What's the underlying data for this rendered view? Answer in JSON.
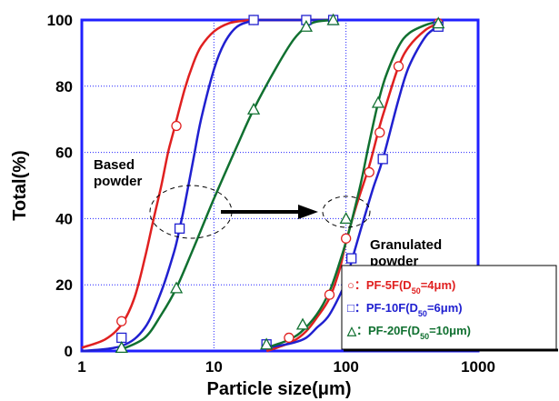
{
  "chart_data": {
    "type": "line",
    "title": "",
    "xlabel": "Particle size(μm)",
    "ylabel": "Total(%)",
    "xscale": "log",
    "xlim": [
      1,
      1000
    ],
    "ylim": [
      0,
      100
    ],
    "xticks": [
      "1",
      "10",
      "100",
      "1000"
    ],
    "yticks": [
      "0",
      "20",
      "40",
      "60",
      "80",
      "100"
    ],
    "grid": "dotted",
    "annotations": {
      "based_line1": "Based",
      "based_line2": "powder",
      "granulated_line1": "Granulated",
      "granulated_line2": "powder"
    },
    "legend": {
      "position": "bottom-right",
      "entries": [
        {
          "prefix": "○：PF-5F(D",
          "sub": "50",
          "suffix": "=4μm)",
          "color": "#e02020",
          "marker": "circle"
        },
        {
          "prefix": "□：PF-10F(D",
          "sub": "50",
          "suffix": "=6μm)",
          "color": "#2020d0",
          "marker": "square"
        },
        {
          "prefix": "△：PF-20F(D",
          "sub": "50",
          "suffix": "=10μm)",
          "color": "#107030",
          "marker": "triangle"
        }
      ]
    },
    "series": [
      {
        "group": "based",
        "color": "#e02020",
        "marker": "circle",
        "curve": [
          [
            1,
            1
          ],
          [
            1.5,
            3.5
          ],
          [
            2,
            8
          ],
          [
            2.5,
            16
          ],
          [
            3,
            28
          ],
          [
            3.5,
            40
          ],
          [
            4,
            50
          ],
          [
            4.5,
            60
          ],
          [
            5,
            67
          ],
          [
            6,
            79
          ],
          [
            7,
            87
          ],
          [
            8,
            92
          ],
          [
            10,
            96.5
          ],
          [
            13,
            99
          ],
          [
            17,
            99.8
          ],
          [
            20,
            100
          ],
          [
            40,
            100
          ],
          [
            80,
            100
          ]
        ],
        "points": [
          [
            2,
            9
          ],
          [
            5.2,
            68
          ],
          [
            20,
            100
          ]
        ]
      },
      {
        "group": "based",
        "color": "#2020d0",
        "marker": "square",
        "curve": [
          [
            1,
            0
          ],
          [
            2,
            1.5
          ],
          [
            3,
            7
          ],
          [
            4,
            18
          ],
          [
            5,
            30
          ],
          [
            5.5,
            37
          ],
          [
            6,
            44
          ],
          [
            7,
            58
          ],
          [
            8,
            70
          ],
          [
            10,
            85
          ],
          [
            12,
            93
          ],
          [
            15,
            98
          ],
          [
            20,
            99.8
          ],
          [
            25,
            100
          ],
          [
            50,
            100
          ],
          [
            80,
            100
          ]
        ],
        "points": [
          [
            2,
            4
          ],
          [
            5.5,
            37
          ],
          [
            20,
            100
          ],
          [
            50,
            100
          ],
          [
            80,
            100
          ]
        ]
      },
      {
        "group": "based",
        "color": "#107030",
        "marker": "triangle",
        "curve": [
          [
            2,
            0.5
          ],
          [
            3,
            4
          ],
          [
            4,
            11
          ],
          [
            5.2,
            19
          ],
          [
            7,
            31
          ],
          [
            10,
            46
          ],
          [
            15,
            62
          ],
          [
            20,
            73
          ],
          [
            30,
            86
          ],
          [
            40,
            94
          ],
          [
            50,
            98
          ],
          [
            60,
            99.5
          ],
          [
            80,
            100
          ]
        ],
        "points": [
          [
            2,
            1
          ],
          [
            5.2,
            19
          ],
          [
            20,
            73
          ],
          [
            50,
            98
          ],
          [
            80,
            100
          ]
        ]
      },
      {
        "group": "granulated",
        "color": "#e02020",
        "marker": "circle",
        "curve": [
          [
            25,
            0
          ],
          [
            30,
            1
          ],
          [
            40,
            3
          ],
          [
            50,
            6
          ],
          [
            60,
            10
          ],
          [
            75,
            16
          ],
          [
            90,
            25
          ],
          [
            100,
            33
          ],
          [
            120,
            44
          ],
          [
            150,
            56
          ],
          [
            180,
            68
          ],
          [
            200,
            74
          ],
          [
            250,
            86
          ],
          [
            300,
            92
          ],
          [
            400,
            97
          ],
          [
            500,
            99
          ]
        ],
        "points": [
          [
            37,
            4
          ],
          [
            75,
            17
          ],
          [
            100,
            34
          ],
          [
            150,
            54
          ],
          [
            180,
            66
          ],
          [
            250,
            86
          ],
          [
            500,
            99
          ]
        ]
      },
      {
        "group": "granulated",
        "color": "#2020d0",
        "marker": "square",
        "curve": [
          [
            25,
            1
          ],
          [
            30,
            1.5
          ],
          [
            40,
            2.5
          ],
          [
            50,
            4
          ],
          [
            60,
            7
          ],
          [
            75,
            11
          ],
          [
            100,
            21
          ],
          [
            110,
            27
          ],
          [
            130,
            37
          ],
          [
            160,
            49
          ],
          [
            190,
            58
          ],
          [
            250,
            76
          ],
          [
            300,
            86
          ],
          [
            400,
            95
          ],
          [
            500,
            98
          ]
        ],
        "points": [
          [
            25,
            2
          ],
          [
            110,
            28
          ],
          [
            190,
            58
          ],
          [
            500,
            98
          ]
        ]
      },
      {
        "group": "granulated",
        "color": "#107030",
        "marker": "triangle",
        "curve": [
          [
            25,
            1
          ],
          [
            35,
            3
          ],
          [
            45,
            5.5
          ],
          [
            60,
            11
          ],
          [
            75,
            18
          ],
          [
            90,
            27
          ],
          [
            100,
            33
          ],
          [
            110,
            39
          ],
          [
            130,
            51
          ],
          [
            150,
            63
          ],
          [
            175,
            75
          ],
          [
            200,
            83
          ],
          [
            250,
            92
          ],
          [
            300,
            96
          ],
          [
            400,
            98.5
          ],
          [
            500,
            99.5
          ]
        ],
        "points": [
          [
            25,
            2
          ],
          [
            47,
            8
          ],
          [
            100,
            40
          ],
          [
            175,
            75
          ],
          [
            500,
            99
          ]
        ]
      }
    ]
  }
}
